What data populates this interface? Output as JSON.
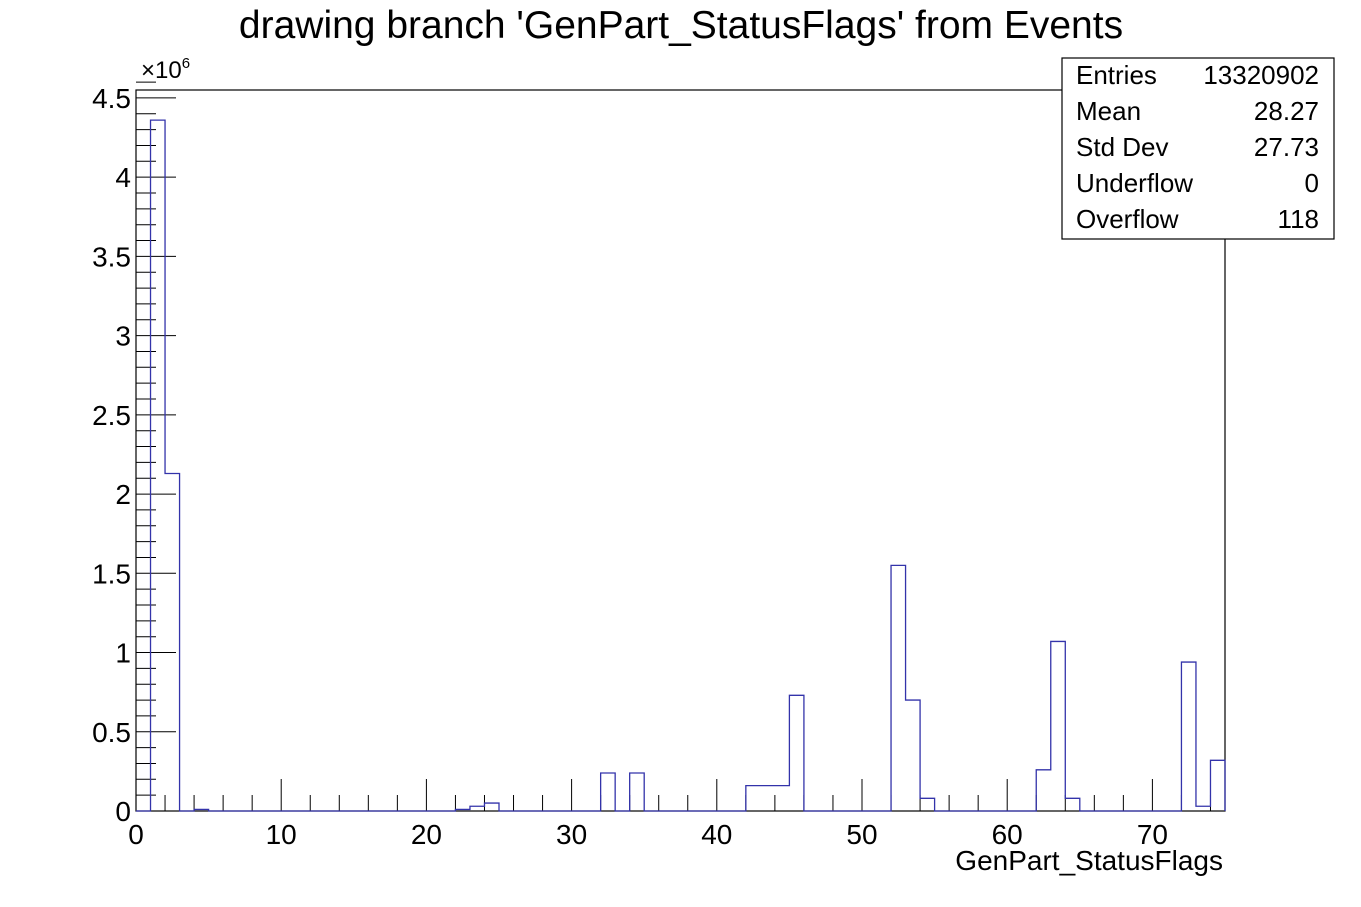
{
  "chart_data": {
    "type": "bar",
    "title": "drawing branch 'GenPart_StatusFlags' from Events",
    "xlabel": "GenPart_StatusFlags",
    "ylabel": "",
    "y_multiplier_label": "×10",
    "y_multiplier_exp": "6",
    "xlim": [
      0,
      75
    ],
    "ylim": [
      0,
      4.55
    ],
    "bin_width": 1,
    "grid": false,
    "legend": "none",
    "colors": {
      "hist_line": "#3333aa",
      "axis": "#000000"
    },
    "x_ticks": [
      0,
      10,
      20,
      30,
      40,
      50,
      60,
      70
    ],
    "x_tick_labels": [
      "0",
      "10",
      "20",
      "30",
      "40",
      "50",
      "60",
      "70"
    ],
    "y_ticks": [
      0,
      0.5,
      1,
      1.5,
      2,
      2.5,
      3,
      3.5,
      4,
      4.5
    ],
    "y_tick_labels": [
      "0",
      "0.5",
      "1",
      "1.5",
      "2",
      "2.5",
      "3",
      "3.5",
      "4",
      "4.5"
    ],
    "bins_x_low": [
      0,
      1,
      2,
      3,
      4,
      5,
      6,
      7,
      8,
      9,
      10,
      11,
      12,
      13,
      14,
      15,
      16,
      17,
      18,
      19,
      20,
      21,
      22,
      23,
      24,
      25,
      26,
      27,
      28,
      29,
      30,
      31,
      32,
      33,
      34,
      35,
      36,
      37,
      38,
      39,
      40,
      41,
      42,
      43,
      44,
      45,
      46,
      47,
      48,
      49,
      50,
      51,
      52,
      53,
      54,
      55,
      56,
      57,
      58,
      59,
      60,
      61,
      62,
      63,
      64,
      65,
      66,
      67,
      68,
      69,
      70,
      71,
      72,
      73,
      74
    ],
    "values": [
      0,
      4.36,
      2.13,
      0,
      0.01,
      0,
      0,
      0,
      0,
      0,
      0,
      0,
      0,
      0,
      0,
      0,
      0,
      0,
      0,
      0,
      0,
      0,
      0.01,
      0.03,
      0.05,
      0,
      0,
      0,
      0,
      0,
      0,
      0,
      0.24,
      0,
      0.24,
      0,
      0,
      0,
      0,
      0,
      0,
      0,
      0.16,
      0.16,
      0.16,
      0.73,
      0,
      0,
      0,
      0,
      0,
      0,
      1.55,
      0.7,
      0.08,
      0,
      0,
      0,
      0,
      0,
      0,
      0,
      0.26,
      1.07,
      0.08,
      0,
      0,
      0,
      0,
      0,
      0,
      0,
      0.94,
      0.03,
      0.32
    ]
  },
  "stats": [
    {
      "label": "Entries",
      "value": "13320902"
    },
    {
      "label": "Mean",
      "value": "28.27"
    },
    {
      "label": "Std Dev",
      "value": "27.73"
    },
    {
      "label": "Underflow",
      "value": "0"
    },
    {
      "label": "Overflow",
      "value": "118"
    }
  ]
}
